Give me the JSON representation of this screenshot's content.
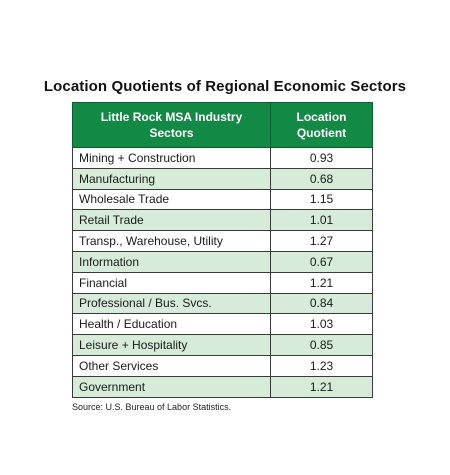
{
  "title": "Location Quotients of Regional Economic Sectors",
  "table": {
    "headers": [
      "Little Rock MSA Industry Sectors",
      "Location Quotient"
    ],
    "rows": [
      {
        "sector": "Mining + Construction",
        "value": "0.93"
      },
      {
        "sector": "Manufacturing",
        "value": "0.68"
      },
      {
        "sector": "Wholesale Trade",
        "value": "1.15"
      },
      {
        "sector": "Retail Trade",
        "value": "1.01"
      },
      {
        "sector": "Transp., Warehouse, Utility",
        "value": "1.27"
      },
      {
        "sector": "Information",
        "value": "0.67"
      },
      {
        "sector": "Financial",
        "value": "1.21"
      },
      {
        "sector": "Professional / Bus.  Svcs.",
        "value": "0.84"
      },
      {
        "sector": "Health / Education",
        "value": "1.03"
      },
      {
        "sector": "Leisure + Hospitality",
        "value": "0.85"
      },
      {
        "sector": "Other Services",
        "value": "1.23"
      },
      {
        "sector": "Government",
        "value": "1.21"
      }
    ]
  },
  "source": "Source: U.S. Bureau of Labor Statistics.",
  "colors": {
    "header_bg": "#128a45",
    "stripe_bg": "#d6ecd9"
  }
}
